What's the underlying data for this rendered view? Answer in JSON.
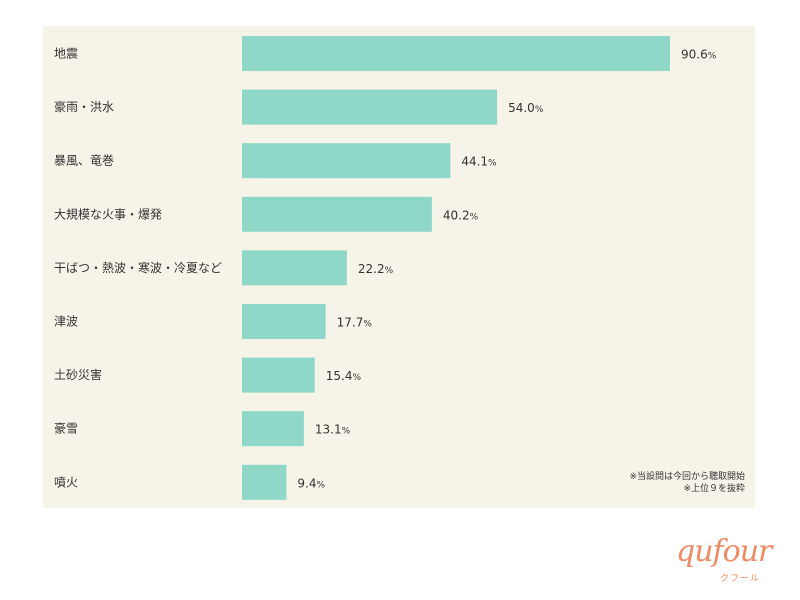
{
  "chart_data": {
    "type": "bar",
    "orientation": "horizontal",
    "categories": [
      "地震",
      "豪雨・洪水",
      "暴風、竜巻",
      "大規模な火事・爆発",
      "干ばつ・熱波・寒波・冷夏など",
      "津波",
      "土砂災害",
      "豪雪",
      "噴火"
    ],
    "values": [
      90.6,
      54.0,
      44.1,
      40.2,
      22.2,
      17.7,
      15.4,
      13.1,
      9.4
    ],
    "value_labels": [
      "90.6",
      "54.0",
      "44.1",
      "40.2",
      "22.2",
      "17.7",
      "15.4",
      "13.1",
      "9.4"
    ],
    "unit": "%",
    "xlim": [
      0,
      100
    ],
    "bar_color": "#8fd8c8",
    "grid": false
  },
  "notes": [
    "※当設問は今回から聴取開始",
    "※上位９を抜粋"
  ],
  "logo": {
    "text": "qufour",
    "sub": "クフール",
    "color": "#f08a65"
  },
  "colors": {
    "background": "#f6f3e8"
  }
}
